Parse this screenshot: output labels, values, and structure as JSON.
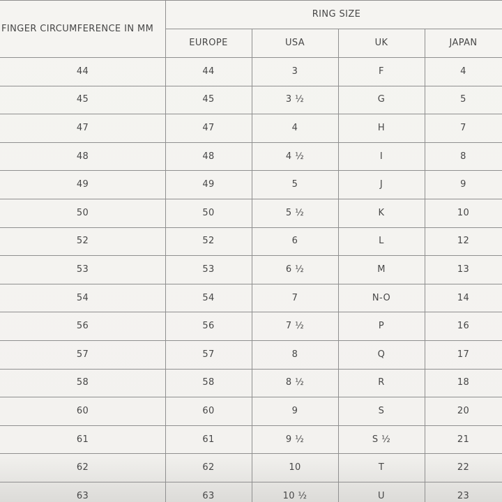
{
  "table": {
    "first_header": "FINGER CIRCUMFERENCE IN MM",
    "group_header": "RING SIZE",
    "columns": [
      "EUROPE",
      "USA",
      "UK",
      "JAPAN"
    ],
    "rows": [
      [
        "44",
        "44",
        "3",
        "F",
        "4"
      ],
      [
        "45",
        "45",
        "3 ½",
        "G",
        "5"
      ],
      [
        "47",
        "47",
        "4",
        "H",
        "7"
      ],
      [
        "48",
        "48",
        "4 ½",
        "I",
        "8"
      ],
      [
        "49",
        "49",
        "5",
        "J",
        "9"
      ],
      [
        "50",
        "50",
        "5 ½",
        "K",
        "10"
      ],
      [
        "52",
        "52",
        "6",
        "L",
        "12"
      ],
      [
        "53",
        "53",
        "6 ½",
        "M",
        "13"
      ],
      [
        "54",
        "54",
        "7",
        "N-O",
        "14"
      ],
      [
        "56",
        "56",
        "7 ½",
        "P",
        "16"
      ],
      [
        "57",
        "57",
        "8",
        "Q",
        "17"
      ],
      [
        "58",
        "58",
        "8 ½",
        "R",
        "18"
      ],
      [
        "60",
        "60",
        "9",
        "S",
        "20"
      ],
      [
        "61",
        "61",
        "9 ½",
        "S ½",
        "21"
      ],
      [
        "62",
        "62",
        "10",
        "T",
        "22"
      ],
      [
        "63",
        "63",
        "10 ½",
        "U",
        "23"
      ]
    ]
  }
}
